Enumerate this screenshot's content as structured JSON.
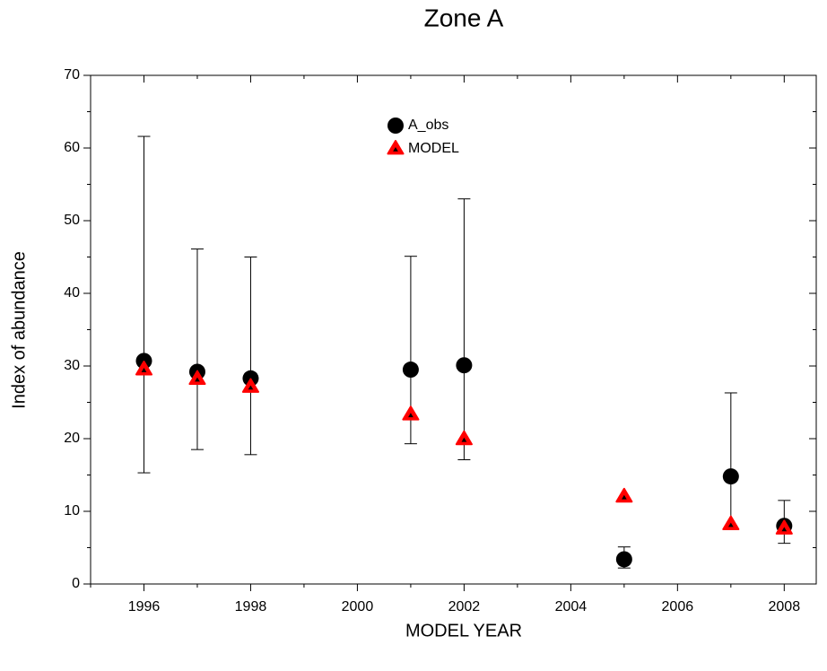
{
  "chart_data": {
    "type": "scatter",
    "title": "Zone A",
    "xlabel": "MODEL YEAR",
    "ylabel": "Index of abundance",
    "xlim": [
      1995,
      2008.6
    ],
    "ylim": [
      0,
      70
    ],
    "xticks": [
      1996,
      1998,
      2000,
      2002,
      2004,
      2006,
      2008
    ],
    "xminorticks": [
      1995,
      1997,
      1999,
      2001,
      2003,
      2005,
      2007
    ],
    "yticks": [
      0,
      10,
      20,
      30,
      40,
      50,
      60,
      70
    ],
    "yminorticks": [
      5,
      15,
      25,
      35,
      45,
      55,
      65
    ],
    "legend": "top-center",
    "series": [
      {
        "name": "A_obs",
        "color": "#000000",
        "marker": "circle",
        "x": [
          1996,
          1997,
          1998,
          2001,
          2002,
          2005,
          2007,
          2008
        ],
        "values": [
          30.7,
          29.2,
          28.3,
          29.5,
          30.1,
          3.4,
          14.8,
          8.0
        ],
        "lower": [
          15.3,
          18.5,
          17.8,
          19.3,
          17.1,
          2.2,
          8.0,
          5.6
        ],
        "upper": [
          61.6,
          46.1,
          45.0,
          45.1,
          53.0,
          5.1,
          26.3,
          11.5
        ]
      },
      {
        "name": "MODEL",
        "color": "#ff0000",
        "marker": "triangle",
        "x": [
          1996,
          1997,
          1998,
          2001,
          2002,
          2005,
          2007,
          2008
        ],
        "values": [
          29.5,
          28.2,
          27.1,
          23.3,
          19.9,
          12.0,
          8.2,
          7.6
        ]
      }
    ]
  }
}
